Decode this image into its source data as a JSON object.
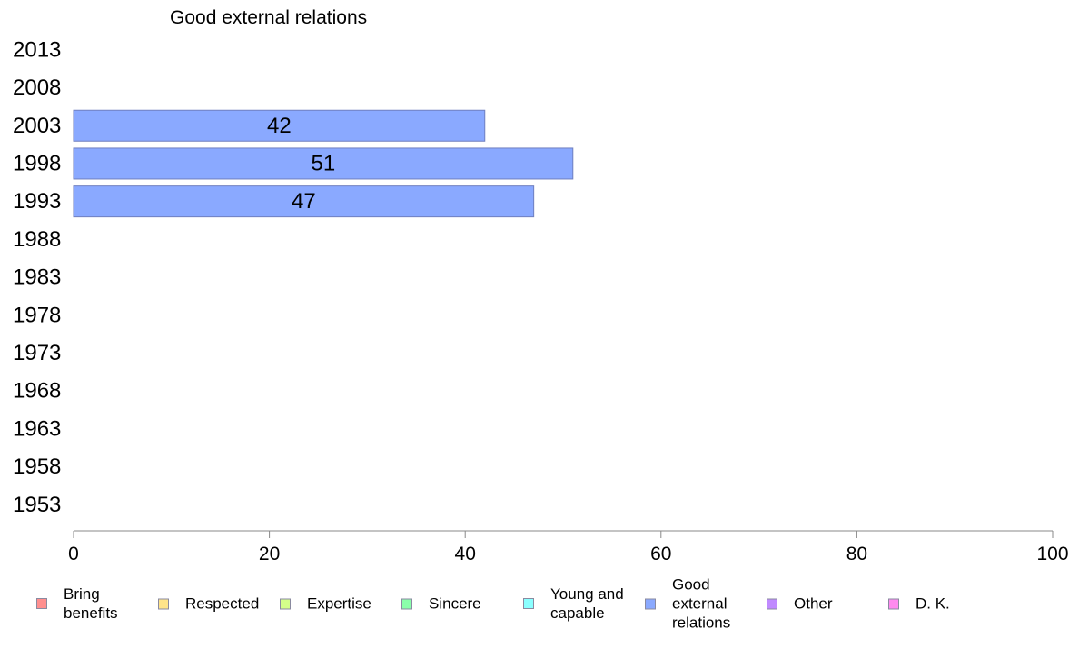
{
  "chart_data": {
    "type": "bar",
    "orientation": "horizontal",
    "title": "Good external relations",
    "categories": [
      "2013",
      "2008",
      "2003",
      "1998",
      "1993",
      "1988",
      "1983",
      "1978",
      "1973",
      "1968",
      "1963",
      "1958",
      "1953"
    ],
    "series": [
      {
        "name": "Good external relations",
        "values": [
          null,
          null,
          42,
          51,
          47,
          null,
          null,
          null,
          null,
          null,
          null,
          null,
          null
        ],
        "color": "#8aa9ff"
      }
    ],
    "xlim": [
      0,
      100
    ],
    "xticks": [
      "0",
      "20",
      "40",
      "60",
      "80",
      "100"
    ],
    "grid": false,
    "legend_placement": "bottom"
  },
  "legend": {
    "items": [
      {
        "label": "Bring\nbenefits",
        "color": "#ff8f8f"
      },
      {
        "label": "Respected",
        "color": "#ffe48a"
      },
      {
        "label": "Expertise",
        "color": "#d4ff8a"
      },
      {
        "label": "Sincere",
        "color": "#8affaa"
      },
      {
        "label": "Young and\ncapable",
        "color": "#8affff"
      },
      {
        "label": "Good\nexternal\nrelations",
        "color": "#8aa9ff"
      },
      {
        "label": "Other",
        "color": "#c08aff"
      },
      {
        "label": "D. K.",
        "color": "#ff8aef"
      }
    ]
  }
}
